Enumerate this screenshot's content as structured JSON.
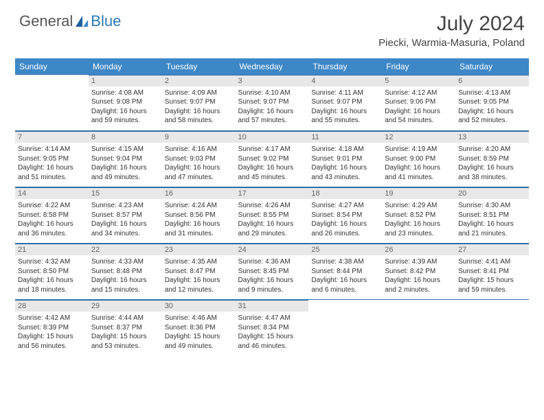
{
  "logo": {
    "text_general": "General",
    "text_blue": "Blue"
  },
  "title": "July 2024",
  "location": "Piecki, Warmia-Masuria, Poland",
  "colors": {
    "header_bg": "#3d87c7",
    "header_border": "#2a6fa8",
    "daynum_bg": "#e8e8e8",
    "logo_blue": "#2a7ab8",
    "text": "#333333"
  },
  "day_headers": [
    "Sunday",
    "Monday",
    "Tuesday",
    "Wednesday",
    "Thursday",
    "Friday",
    "Saturday"
  ],
  "weeks": [
    [
      null,
      {
        "n": "1",
        "sunrise": "Sunrise: 4:08 AM",
        "sunset": "Sunset: 9:08 PM",
        "day1": "Daylight: 16 hours",
        "day2": "and 59 minutes."
      },
      {
        "n": "2",
        "sunrise": "Sunrise: 4:09 AM",
        "sunset": "Sunset: 9:07 PM",
        "day1": "Daylight: 16 hours",
        "day2": "and 58 minutes."
      },
      {
        "n": "3",
        "sunrise": "Sunrise: 4:10 AM",
        "sunset": "Sunset: 9:07 PM",
        "day1": "Daylight: 16 hours",
        "day2": "and 57 minutes."
      },
      {
        "n": "4",
        "sunrise": "Sunrise: 4:11 AM",
        "sunset": "Sunset: 9:07 PM",
        "day1": "Daylight: 16 hours",
        "day2": "and 55 minutes."
      },
      {
        "n": "5",
        "sunrise": "Sunrise: 4:12 AM",
        "sunset": "Sunset: 9:06 PM",
        "day1": "Daylight: 16 hours",
        "day2": "and 54 minutes."
      },
      {
        "n": "6",
        "sunrise": "Sunrise: 4:13 AM",
        "sunset": "Sunset: 9:05 PM",
        "day1": "Daylight: 16 hours",
        "day2": "and 52 minutes."
      }
    ],
    [
      {
        "n": "7",
        "sunrise": "Sunrise: 4:14 AM",
        "sunset": "Sunset: 9:05 PM",
        "day1": "Daylight: 16 hours",
        "day2": "and 51 minutes."
      },
      {
        "n": "8",
        "sunrise": "Sunrise: 4:15 AM",
        "sunset": "Sunset: 9:04 PM",
        "day1": "Daylight: 16 hours",
        "day2": "and 49 minutes."
      },
      {
        "n": "9",
        "sunrise": "Sunrise: 4:16 AM",
        "sunset": "Sunset: 9:03 PM",
        "day1": "Daylight: 16 hours",
        "day2": "and 47 minutes."
      },
      {
        "n": "10",
        "sunrise": "Sunrise: 4:17 AM",
        "sunset": "Sunset: 9:02 PM",
        "day1": "Daylight: 16 hours",
        "day2": "and 45 minutes."
      },
      {
        "n": "11",
        "sunrise": "Sunrise: 4:18 AM",
        "sunset": "Sunset: 9:01 PM",
        "day1": "Daylight: 16 hours",
        "day2": "and 43 minutes."
      },
      {
        "n": "12",
        "sunrise": "Sunrise: 4:19 AM",
        "sunset": "Sunset: 9:00 PM",
        "day1": "Daylight: 16 hours",
        "day2": "and 41 minutes."
      },
      {
        "n": "13",
        "sunrise": "Sunrise: 4:20 AM",
        "sunset": "Sunset: 8:59 PM",
        "day1": "Daylight: 16 hours",
        "day2": "and 38 minutes."
      }
    ],
    [
      {
        "n": "14",
        "sunrise": "Sunrise: 4:22 AM",
        "sunset": "Sunset: 8:58 PM",
        "day1": "Daylight: 16 hours",
        "day2": "and 36 minutes."
      },
      {
        "n": "15",
        "sunrise": "Sunrise: 4:23 AM",
        "sunset": "Sunset: 8:57 PM",
        "day1": "Daylight: 16 hours",
        "day2": "and 34 minutes."
      },
      {
        "n": "16",
        "sunrise": "Sunrise: 4:24 AM",
        "sunset": "Sunset: 8:56 PM",
        "day1": "Daylight: 16 hours",
        "day2": "and 31 minutes."
      },
      {
        "n": "17",
        "sunrise": "Sunrise: 4:26 AM",
        "sunset": "Sunset: 8:55 PM",
        "day1": "Daylight: 16 hours",
        "day2": "and 29 minutes."
      },
      {
        "n": "18",
        "sunrise": "Sunrise: 4:27 AM",
        "sunset": "Sunset: 8:54 PM",
        "day1": "Daylight: 16 hours",
        "day2": "and 26 minutes."
      },
      {
        "n": "19",
        "sunrise": "Sunrise: 4:29 AM",
        "sunset": "Sunset: 8:52 PM",
        "day1": "Daylight: 16 hours",
        "day2": "and 23 minutes."
      },
      {
        "n": "20",
        "sunrise": "Sunrise: 4:30 AM",
        "sunset": "Sunset: 8:51 PM",
        "day1": "Daylight: 16 hours",
        "day2": "and 21 minutes."
      }
    ],
    [
      {
        "n": "21",
        "sunrise": "Sunrise: 4:32 AM",
        "sunset": "Sunset: 8:50 PM",
        "day1": "Daylight: 16 hours",
        "day2": "and 18 minutes."
      },
      {
        "n": "22",
        "sunrise": "Sunrise: 4:33 AM",
        "sunset": "Sunset: 8:48 PM",
        "day1": "Daylight: 16 hours",
        "day2": "and 15 minutes."
      },
      {
        "n": "23",
        "sunrise": "Sunrise: 4:35 AM",
        "sunset": "Sunset: 8:47 PM",
        "day1": "Daylight: 16 hours",
        "day2": "and 12 minutes."
      },
      {
        "n": "24",
        "sunrise": "Sunrise: 4:36 AM",
        "sunset": "Sunset: 8:45 PM",
        "day1": "Daylight: 16 hours",
        "day2": "and 9 minutes."
      },
      {
        "n": "25",
        "sunrise": "Sunrise: 4:38 AM",
        "sunset": "Sunset: 8:44 PM",
        "day1": "Daylight: 16 hours",
        "day2": "and 6 minutes."
      },
      {
        "n": "26",
        "sunrise": "Sunrise: 4:39 AM",
        "sunset": "Sunset: 8:42 PM",
        "day1": "Daylight: 16 hours",
        "day2": "and 2 minutes."
      },
      {
        "n": "27",
        "sunrise": "Sunrise: 4:41 AM",
        "sunset": "Sunset: 8:41 PM",
        "day1": "Daylight: 15 hours",
        "day2": "and 59 minutes."
      }
    ],
    [
      {
        "n": "28",
        "sunrise": "Sunrise: 4:42 AM",
        "sunset": "Sunset: 8:39 PM",
        "day1": "Daylight: 15 hours",
        "day2": "and 56 minutes."
      },
      {
        "n": "29",
        "sunrise": "Sunrise: 4:44 AM",
        "sunset": "Sunset: 8:37 PM",
        "day1": "Daylight: 15 hours",
        "day2": "and 53 minutes."
      },
      {
        "n": "30",
        "sunrise": "Sunrise: 4:46 AM",
        "sunset": "Sunset: 8:36 PM",
        "day1": "Daylight: 15 hours",
        "day2": "and 49 minutes."
      },
      {
        "n": "31",
        "sunrise": "Sunrise: 4:47 AM",
        "sunset": "Sunset: 8:34 PM",
        "day1": "Daylight: 15 hours",
        "day2": "and 46 minutes."
      },
      null,
      null,
      null
    ]
  ]
}
